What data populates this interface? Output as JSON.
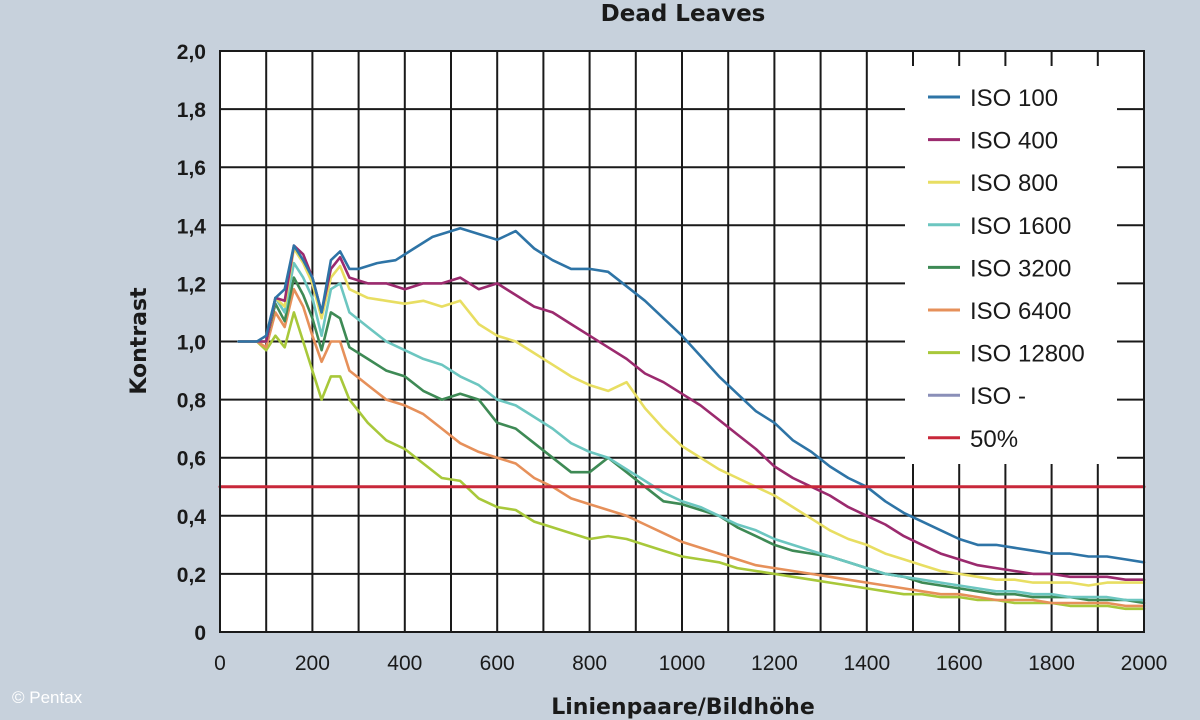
{
  "chart_data": {
    "type": "line",
    "title": "Dead Leaves",
    "xlabel": "Linienpaare/Bildhöhe",
    "ylabel": "Kontrast",
    "xlim": [
      0,
      2000
    ],
    "ylim": [
      0,
      2.0
    ],
    "xticks": [
      0,
      200,
      400,
      600,
      800,
      1000,
      1200,
      1400,
      1600,
      1800,
      2000
    ],
    "xtick_labels": [
      "0",
      "200",
      "400",
      "600",
      "800",
      "1000",
      "1200",
      "1400",
      "1600",
      "1800",
      "2000"
    ],
    "yticks": [
      0,
      0.2,
      0.4,
      0.6,
      0.8,
      1.0,
      1.2,
      1.4,
      1.6,
      1.8,
      2.0
    ],
    "ytick_labels": [
      "0",
      "0,2",
      "0,4",
      "0,6",
      "0,8",
      "1,0",
      "1,2",
      "1,4",
      "1,6",
      "1,8",
      "2,0"
    ],
    "grid": true,
    "legend_position": "top-right",
    "credit": "© Pentax",
    "series": [
      {
        "name": "ISO 100",
        "color": "#2e74a6",
        "x": [
          40,
          80,
          100,
          120,
          140,
          160,
          180,
          200,
          220,
          240,
          260,
          280,
          300,
          340,
          380,
          420,
          460,
          500,
          520,
          560,
          600,
          640,
          680,
          720,
          760,
          800,
          840,
          880,
          920,
          960,
          1000,
          1040,
          1080,
          1120,
          1160,
          1200,
          1240,
          1280,
          1320,
          1360,
          1400,
          1440,
          1480,
          1520,
          1560,
          1600,
          1640,
          1680,
          1720,
          1760,
          1800,
          1840,
          1880,
          1920,
          1960,
          2000
        ],
        "y": [
          1.0,
          1.0,
          1.02,
          1.15,
          1.18,
          1.33,
          1.28,
          1.22,
          1.1,
          1.28,
          1.31,
          1.25,
          1.25,
          1.27,
          1.28,
          1.32,
          1.36,
          1.38,
          1.39,
          1.37,
          1.35,
          1.38,
          1.32,
          1.28,
          1.25,
          1.25,
          1.24,
          1.19,
          1.14,
          1.08,
          1.02,
          0.95,
          0.88,
          0.82,
          0.76,
          0.72,
          0.66,
          0.62,
          0.57,
          0.53,
          0.5,
          0.45,
          0.41,
          0.38,
          0.35,
          0.32,
          0.3,
          0.3,
          0.29,
          0.28,
          0.27,
          0.27,
          0.26,
          0.26,
          0.25,
          0.24
        ]
      },
      {
        "name": "ISO 400",
        "color": "#9b2a6e",
        "x": [
          40,
          80,
          100,
          120,
          140,
          160,
          180,
          200,
          220,
          240,
          260,
          280,
          320,
          360,
          400,
          440,
          480,
          520,
          560,
          600,
          640,
          680,
          720,
          760,
          800,
          840,
          880,
          920,
          960,
          1000,
          1040,
          1080,
          1120,
          1160,
          1200,
          1240,
          1280,
          1320,
          1360,
          1400,
          1440,
          1480,
          1520,
          1560,
          1600,
          1640,
          1680,
          1720,
          1760,
          1800,
          1840,
          1880,
          1920,
          1960,
          2000
        ],
        "y": [
          1.0,
          1.0,
          1.0,
          1.15,
          1.14,
          1.33,
          1.3,
          1.22,
          1.1,
          1.25,
          1.29,
          1.22,
          1.2,
          1.2,
          1.18,
          1.2,
          1.2,
          1.22,
          1.18,
          1.2,
          1.16,
          1.12,
          1.1,
          1.06,
          1.02,
          0.98,
          0.94,
          0.89,
          0.86,
          0.82,
          0.78,
          0.73,
          0.68,
          0.63,
          0.57,
          0.53,
          0.5,
          0.47,
          0.43,
          0.4,
          0.37,
          0.33,
          0.3,
          0.27,
          0.25,
          0.23,
          0.22,
          0.21,
          0.2,
          0.2,
          0.19,
          0.19,
          0.19,
          0.18,
          0.18
        ]
      },
      {
        "name": "ISO 800",
        "color": "#e8de62",
        "x": [
          40,
          80,
          100,
          120,
          140,
          160,
          180,
          200,
          220,
          240,
          260,
          280,
          320,
          360,
          400,
          440,
          480,
          520,
          560,
          600,
          640,
          680,
          720,
          760,
          800,
          840,
          880,
          920,
          960,
          1000,
          1040,
          1080,
          1120,
          1160,
          1200,
          1240,
          1280,
          1320,
          1360,
          1400,
          1440,
          1480,
          1520,
          1560,
          1600,
          1640,
          1680,
          1720,
          1760,
          1800,
          1840,
          1880,
          1920,
          1960,
          2000
        ],
        "y": [
          1.0,
          1.0,
          1.0,
          1.15,
          1.12,
          1.32,
          1.27,
          1.2,
          1.08,
          1.22,
          1.26,
          1.18,
          1.15,
          1.14,
          1.13,
          1.14,
          1.12,
          1.14,
          1.06,
          1.02,
          1.0,
          0.96,
          0.92,
          0.88,
          0.85,
          0.83,
          0.86,
          0.77,
          0.7,
          0.64,
          0.6,
          0.56,
          0.53,
          0.5,
          0.47,
          0.43,
          0.39,
          0.35,
          0.32,
          0.3,
          0.27,
          0.25,
          0.23,
          0.21,
          0.2,
          0.19,
          0.18,
          0.18,
          0.17,
          0.17,
          0.17,
          0.16,
          0.17,
          0.17,
          0.17
        ]
      },
      {
        "name": "ISO 1600",
        "color": "#6cc6c0",
        "x": [
          40,
          80,
          100,
          120,
          140,
          160,
          180,
          200,
          220,
          240,
          260,
          280,
          320,
          360,
          400,
          440,
          480,
          520,
          560,
          600,
          640,
          680,
          720,
          760,
          800,
          840,
          880,
          920,
          960,
          1000,
          1040,
          1080,
          1120,
          1160,
          1200,
          1240,
          1280,
          1320,
          1360,
          1400,
          1440,
          1480,
          1520,
          1560,
          1600,
          1640,
          1680,
          1720,
          1760,
          1800,
          1840,
          1880,
          1920,
          1960,
          2000
        ],
        "y": [
          1.0,
          1.0,
          1.0,
          1.15,
          1.1,
          1.27,
          1.22,
          1.15,
          1.02,
          1.18,
          1.2,
          1.1,
          1.05,
          1.0,
          0.97,
          0.94,
          0.92,
          0.88,
          0.85,
          0.8,
          0.78,
          0.74,
          0.7,
          0.65,
          0.62,
          0.6,
          0.56,
          0.52,
          0.48,
          0.45,
          0.43,
          0.4,
          0.37,
          0.35,
          0.32,
          0.3,
          0.28,
          0.26,
          0.24,
          0.22,
          0.2,
          0.19,
          0.18,
          0.17,
          0.16,
          0.15,
          0.14,
          0.14,
          0.13,
          0.13,
          0.12,
          0.12,
          0.12,
          0.11,
          0.11
        ]
      },
      {
        "name": "ISO 3200",
        "color": "#3e8a55",
        "x": [
          40,
          80,
          100,
          120,
          140,
          160,
          180,
          200,
          220,
          240,
          260,
          280,
          320,
          360,
          400,
          440,
          480,
          520,
          560,
          600,
          640,
          680,
          720,
          760,
          800,
          840,
          880,
          920,
          960,
          1000,
          1040,
          1080,
          1120,
          1160,
          1200,
          1240,
          1280,
          1320,
          1360,
          1400,
          1440,
          1480,
          1520,
          1560,
          1600,
          1640,
          1680,
          1720,
          1760,
          1800,
          1840,
          1880,
          1920,
          1960,
          2000
        ],
        "y": [
          1.0,
          1.0,
          1.0,
          1.13,
          1.07,
          1.22,
          1.16,
          1.08,
          0.97,
          1.1,
          1.08,
          0.98,
          0.94,
          0.9,
          0.88,
          0.83,
          0.8,
          0.82,
          0.8,
          0.72,
          0.7,
          0.65,
          0.6,
          0.55,
          0.55,
          0.6,
          0.55,
          0.5,
          0.45,
          0.44,
          0.42,
          0.4,
          0.36,
          0.33,
          0.3,
          0.28,
          0.27,
          0.26,
          0.24,
          0.22,
          0.2,
          0.19,
          0.17,
          0.16,
          0.15,
          0.14,
          0.13,
          0.13,
          0.12,
          0.12,
          0.12,
          0.11,
          0.11,
          0.11,
          0.1
        ]
      },
      {
        "name": "ISO 6400",
        "color": "#e6905a",
        "x": [
          40,
          80,
          100,
          120,
          140,
          160,
          180,
          200,
          220,
          240,
          260,
          280,
          320,
          360,
          400,
          440,
          480,
          520,
          560,
          600,
          640,
          680,
          720,
          760,
          800,
          840,
          880,
          920,
          960,
          1000,
          1040,
          1080,
          1120,
          1160,
          1200,
          1240,
          1280,
          1320,
          1360,
          1400,
          1440,
          1480,
          1520,
          1560,
          1600,
          1640,
          1680,
          1720,
          1760,
          1800,
          1840,
          1880,
          1920,
          1960,
          2000
        ],
        "y": [
          1.0,
          1.0,
          0.98,
          1.1,
          1.05,
          1.18,
          1.12,
          1.02,
          0.93,
          1.0,
          1.0,
          0.9,
          0.85,
          0.8,
          0.78,
          0.75,
          0.7,
          0.65,
          0.62,
          0.6,
          0.58,
          0.53,
          0.5,
          0.46,
          0.44,
          0.42,
          0.4,
          0.37,
          0.34,
          0.31,
          0.29,
          0.27,
          0.25,
          0.23,
          0.22,
          0.21,
          0.2,
          0.19,
          0.18,
          0.17,
          0.16,
          0.15,
          0.14,
          0.13,
          0.13,
          0.12,
          0.11,
          0.11,
          0.11,
          0.1,
          0.1,
          0.1,
          0.1,
          0.09,
          0.09
        ]
      },
      {
        "name": "ISO 12800",
        "color": "#a8c83a",
        "x": [
          40,
          80,
          100,
          120,
          140,
          160,
          180,
          200,
          220,
          240,
          260,
          280,
          320,
          360,
          400,
          440,
          480,
          520,
          560,
          600,
          640,
          680,
          720,
          760,
          800,
          840,
          880,
          920,
          960,
          1000,
          1040,
          1080,
          1120,
          1160,
          1200,
          1240,
          1280,
          1320,
          1360,
          1400,
          1440,
          1480,
          1520,
          1560,
          1600,
          1640,
          1680,
          1720,
          1760,
          1800,
          1840,
          1880,
          1920,
          1960,
          2000
        ],
        "y": [
          1.0,
          1.0,
          0.97,
          1.02,
          0.98,
          1.1,
          1.0,
          0.9,
          0.8,
          0.88,
          0.88,
          0.8,
          0.72,
          0.66,
          0.63,
          0.58,
          0.53,
          0.52,
          0.46,
          0.43,
          0.42,
          0.38,
          0.36,
          0.34,
          0.32,
          0.33,
          0.32,
          0.3,
          0.28,
          0.26,
          0.25,
          0.24,
          0.22,
          0.21,
          0.2,
          0.19,
          0.18,
          0.17,
          0.16,
          0.15,
          0.14,
          0.13,
          0.13,
          0.12,
          0.12,
          0.11,
          0.11,
          0.1,
          0.1,
          0.1,
          0.09,
          0.09,
          0.09,
          0.08,
          0.08
        ]
      },
      {
        "name": "ISO -",
        "color": "#8a8fb8",
        "x": [],
        "y": []
      },
      {
        "name": "50%",
        "color": "#c8283a",
        "x": [
          0,
          2000
        ],
        "y": [
          0.5,
          0.5
        ]
      }
    ]
  }
}
